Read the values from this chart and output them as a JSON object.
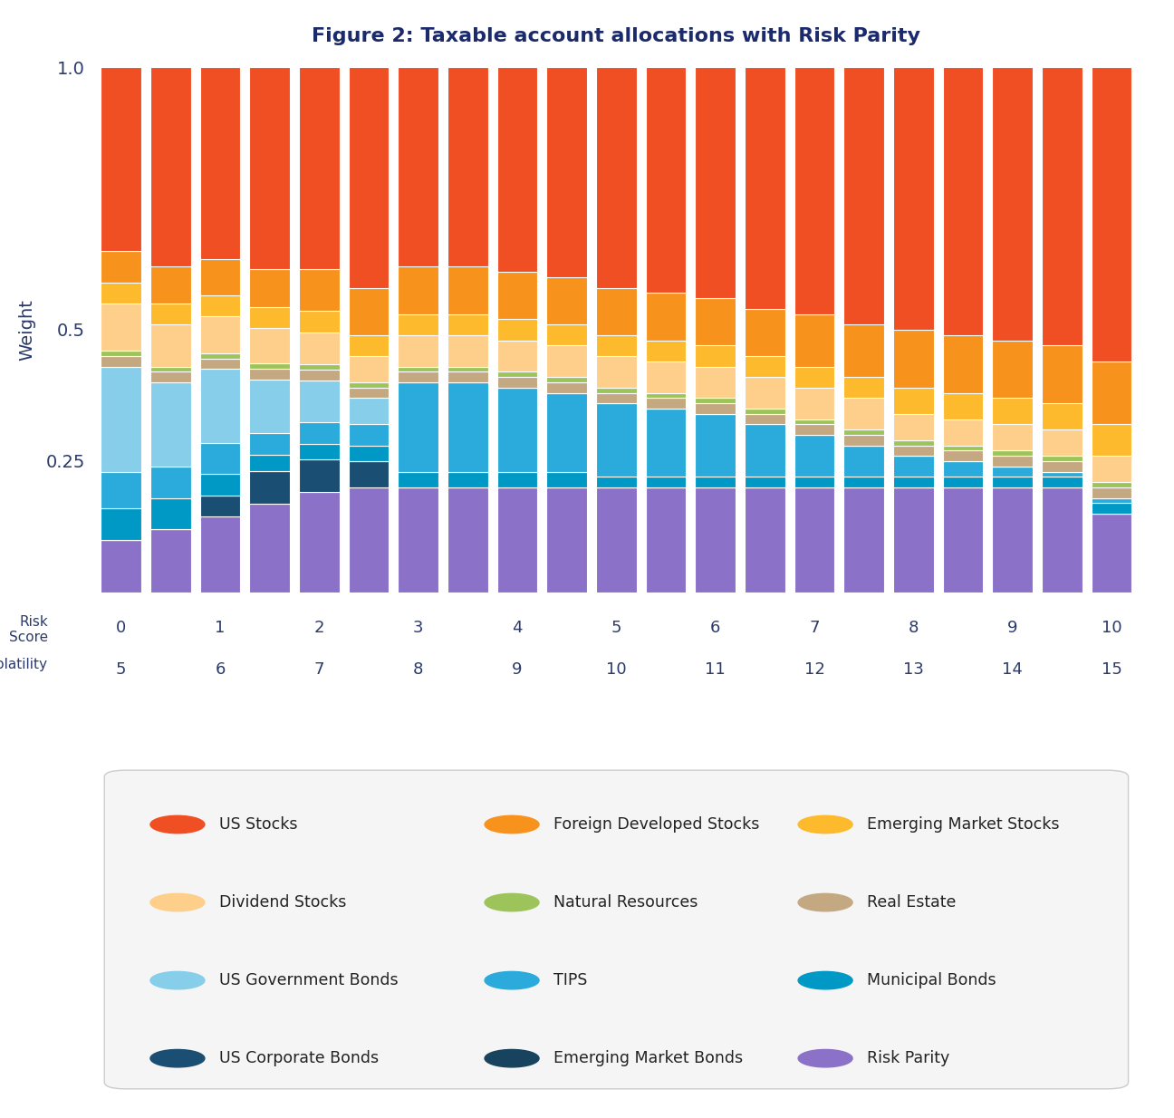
{
  "title": "Figure 2: Taxable account allocations with Risk Parity",
  "ylabel": "Weight",
  "title_color": "#1B2A6B",
  "axis_label_color": "#2B3A6B",
  "background_color": "#ffffff",
  "legend_box_color": "#f5f5f5",
  "asset_classes": [
    "Risk Parity",
    "US Corporate Bonds",
    "Emerging Market Bonds",
    "Municipal Bonds",
    "TIPS",
    "US Government Bonds",
    "Real Estate",
    "Natural Resources",
    "Dividend Stocks",
    "Emerging Market Stocks",
    "Foreign Developed Stocks",
    "US Stocks"
  ],
  "colors": {
    "US Stocks": "#F04E23",
    "Foreign Developed Stocks": "#F7931D",
    "Emerging Market Stocks": "#FDBA2C",
    "Dividend Stocks": "#FDCF8B",
    "Natural Resources": "#9DC45A",
    "Real Estate": "#C4A882",
    "US Government Bonds": "#87CEEB",
    "TIPS": "#2AABDB",
    "Municipal Bonds": "#0099C6",
    "US Corporate Bonds": "#1A4E72",
    "Emerging Market Bonds": "#17435F",
    "Risk Parity": "#8B72C8"
  },
  "data": {
    "Risk Parity": [
      0.1,
      0.12,
      0.145,
      0.165,
      0.19,
      0.2,
      0.2,
      0.2,
      0.2,
      0.2,
      0.2,
      0.2,
      0.2,
      0.2,
      0.2,
      0.2,
      0.2,
      0.2,
      0.2,
      0.2,
      0.15
    ],
    "US Corporate Bonds": [
      0.0,
      0.0,
      0.04,
      0.06,
      0.06,
      0.05,
      0.0,
      0.0,
      0.0,
      0.0,
      0.0,
      0.0,
      0.0,
      0.0,
      0.0,
      0.0,
      0.0,
      0.0,
      0.0,
      0.0,
      0.0
    ],
    "Emerging Market Bonds": [
      0.0,
      0.0,
      0.0,
      0.0,
      0.0,
      0.0,
      0.0,
      0.0,
      0.0,
      0.0,
      0.0,
      0.0,
      0.0,
      0.0,
      0.0,
      0.0,
      0.0,
      0.0,
      0.0,
      0.0,
      0.0
    ],
    "Municipal Bonds": [
      0.06,
      0.06,
      0.04,
      0.03,
      0.03,
      0.03,
      0.03,
      0.03,
      0.03,
      0.03,
      0.02,
      0.02,
      0.02,
      0.02,
      0.02,
      0.02,
      0.02,
      0.02,
      0.02,
      0.02,
      0.02
    ],
    "TIPS": [
      0.07,
      0.06,
      0.06,
      0.04,
      0.04,
      0.04,
      0.17,
      0.17,
      0.16,
      0.15,
      0.14,
      0.13,
      0.12,
      0.1,
      0.08,
      0.06,
      0.04,
      0.03,
      0.02,
      0.01,
      0.01
    ],
    "US Government Bonds": [
      0.2,
      0.16,
      0.14,
      0.1,
      0.08,
      0.05,
      0.0,
      0.0,
      0.0,
      0.0,
      0.0,
      0.0,
      0.0,
      0.0,
      0.0,
      0.0,
      0.0,
      0.0,
      0.0,
      0.0,
      0.0
    ],
    "Real Estate": [
      0.02,
      0.02,
      0.02,
      0.02,
      0.02,
      0.02,
      0.02,
      0.02,
      0.02,
      0.02,
      0.02,
      0.02,
      0.02,
      0.02,
      0.02,
      0.02,
      0.02,
      0.02,
      0.02,
      0.02,
      0.02
    ],
    "Natural Resources": [
      0.01,
      0.01,
      0.01,
      0.01,
      0.01,
      0.01,
      0.01,
      0.01,
      0.01,
      0.01,
      0.01,
      0.01,
      0.01,
      0.01,
      0.01,
      0.01,
      0.01,
      0.01,
      0.01,
      0.01,
      0.01
    ],
    "Dividend Stocks": [
      0.09,
      0.08,
      0.07,
      0.065,
      0.06,
      0.05,
      0.06,
      0.06,
      0.06,
      0.06,
      0.06,
      0.06,
      0.06,
      0.06,
      0.06,
      0.06,
      0.05,
      0.05,
      0.05,
      0.05,
      0.05
    ],
    "Emerging Market Stocks": [
      0.04,
      0.04,
      0.04,
      0.04,
      0.04,
      0.04,
      0.04,
      0.04,
      0.04,
      0.04,
      0.04,
      0.04,
      0.04,
      0.04,
      0.04,
      0.04,
      0.05,
      0.05,
      0.05,
      0.05,
      0.06
    ],
    "Foreign Developed Stocks": [
      0.06,
      0.07,
      0.07,
      0.07,
      0.08,
      0.09,
      0.09,
      0.09,
      0.09,
      0.09,
      0.09,
      0.09,
      0.09,
      0.09,
      0.1,
      0.1,
      0.11,
      0.11,
      0.11,
      0.11,
      0.12
    ],
    "US Stocks": [
      0.35,
      0.38,
      0.365,
      0.375,
      0.38,
      0.42,
      0.38,
      0.38,
      0.39,
      0.4,
      0.42,
      0.43,
      0.44,
      0.46,
      0.47,
      0.49,
      0.5,
      0.51,
      0.52,
      0.53,
      0.56
    ]
  },
  "risk_score_positions": [
    0,
    2,
    4,
    6,
    8,
    10,
    12,
    14,
    16,
    18,
    20
  ],
  "risk_score_labels": [
    "0",
    "1",
    "2",
    "3",
    "4",
    "5",
    "6",
    "7",
    "8",
    "9",
    "10"
  ],
  "volatility_labels": [
    "5",
    "6",
    "7",
    "8",
    "9",
    "10",
    "11",
    "12",
    "13",
    "14",
    "15"
  ],
  "legend_items": [
    [
      "US Stocks",
      "Foreign Developed Stocks",
      "Emerging Market Stocks"
    ],
    [
      "Dividend Stocks",
      "Natural Resources",
      "Real Estate"
    ],
    [
      "US Government Bonds",
      "TIPS",
      "Municipal Bonds"
    ],
    [
      "US Corporate Bonds",
      "Emerging Market Bonds",
      "Risk Parity"
    ]
  ]
}
